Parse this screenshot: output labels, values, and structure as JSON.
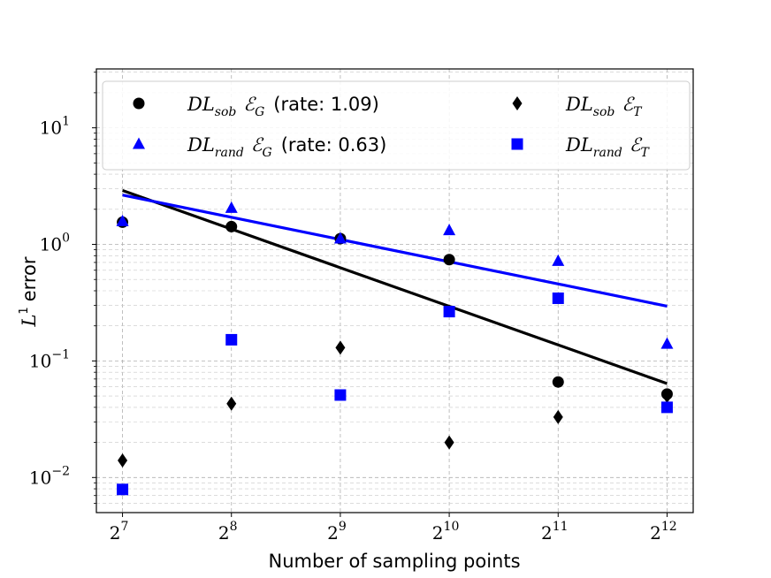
{
  "chart_data": {
    "type": "scatter",
    "xlabel": "Number of sampling points",
    "ylabel": "error",
    "ylabel_math": "L",
    "ylabel_sup": "1",
    "xscale": "log2",
    "yscale": "log10",
    "xlim_exp": [
      6.76,
      12.24
    ],
    "ylim": [
      0.005,
      32
    ],
    "x_ticks": [
      {
        "base": "2",
        "exp": "7"
      },
      {
        "base": "2",
        "exp": "8"
      },
      {
        "base": "2",
        "exp": "9"
      },
      {
        "base": "2",
        "exp": "10"
      },
      {
        "base": "2",
        "exp": "11"
      },
      {
        "base": "2",
        "exp": "12"
      }
    ],
    "y_ticks": [
      {
        "value": 0.01,
        "base": "10",
        "exp": "−2"
      },
      {
        "value": 0.1,
        "base": "10",
        "exp": "−1"
      },
      {
        "value": 1,
        "base": "10",
        "exp": "0"
      },
      {
        "value": 10,
        "base": "10",
        "exp": "1"
      }
    ],
    "grid": true,
    "legend_position": "top",
    "series": [
      {
        "name": "DL_sob E_G",
        "label_main": "DL",
        "label_sub": "sob",
        "label_sym": "ℰ",
        "label_symsub": "G",
        "label_rate": "(rate: 1.09)",
        "marker": "circle",
        "color": "#000000",
        "x_exp": [
          7,
          8,
          9,
          10,
          11,
          12
        ],
        "values": [
          1.55,
          1.42,
          1.12,
          0.74,
          0.066,
          0.052
        ],
        "fit": {
          "x_exp": [
            7,
            12
          ],
          "values": [
            2.9,
            0.064
          ]
        }
      },
      {
        "name": "DL_rand E_G",
        "label_main": "DL",
        "label_sub": "rand",
        "label_sym": "ℰ",
        "label_symsub": "G",
        "label_rate": "(rate: 0.63)",
        "marker": "triangle",
        "color": "#0000ff",
        "x_exp": [
          7,
          8,
          9,
          10,
          11,
          12
        ],
        "values": [
          1.58,
          2.05,
          1.12,
          1.32,
          0.72,
          0.14
        ],
        "fit": {
          "x_exp": [
            7,
            12
          ],
          "values": [
            2.65,
            0.295
          ]
        }
      },
      {
        "name": "DL_sob E_T",
        "label_main": "DL",
        "label_sub": "sob",
        "label_sym": "ℰ",
        "label_symsub": "T",
        "label_rate": "",
        "marker": "diamond",
        "color": "#000000",
        "x_exp": [
          7,
          8,
          9,
          10,
          11,
          12
        ],
        "values": [
          0.014,
          0.043,
          0.13,
          0.02,
          0.033,
          0.05
        ]
      },
      {
        "name": "DL_rand E_T",
        "label_main": "DL",
        "label_sub": "rand",
        "label_sym": "ℰ",
        "label_symsub": "T",
        "label_rate": "",
        "marker": "square",
        "color": "#0000ff",
        "x_exp": [
          7,
          8,
          9,
          10,
          11,
          12
        ],
        "values": [
          0.0079,
          0.152,
          0.051,
          0.265,
          0.345,
          0.04
        ]
      }
    ]
  }
}
